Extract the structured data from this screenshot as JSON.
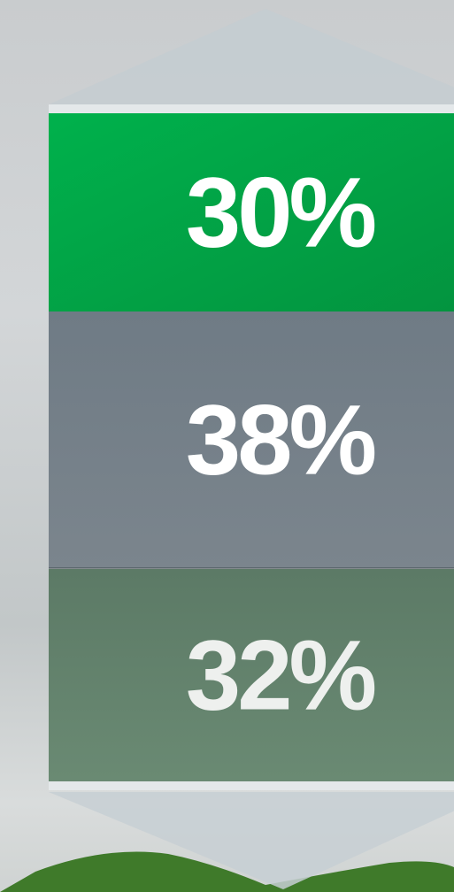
{
  "items": [
    "30%",
    "38%",
    "32%"
  ]
}
